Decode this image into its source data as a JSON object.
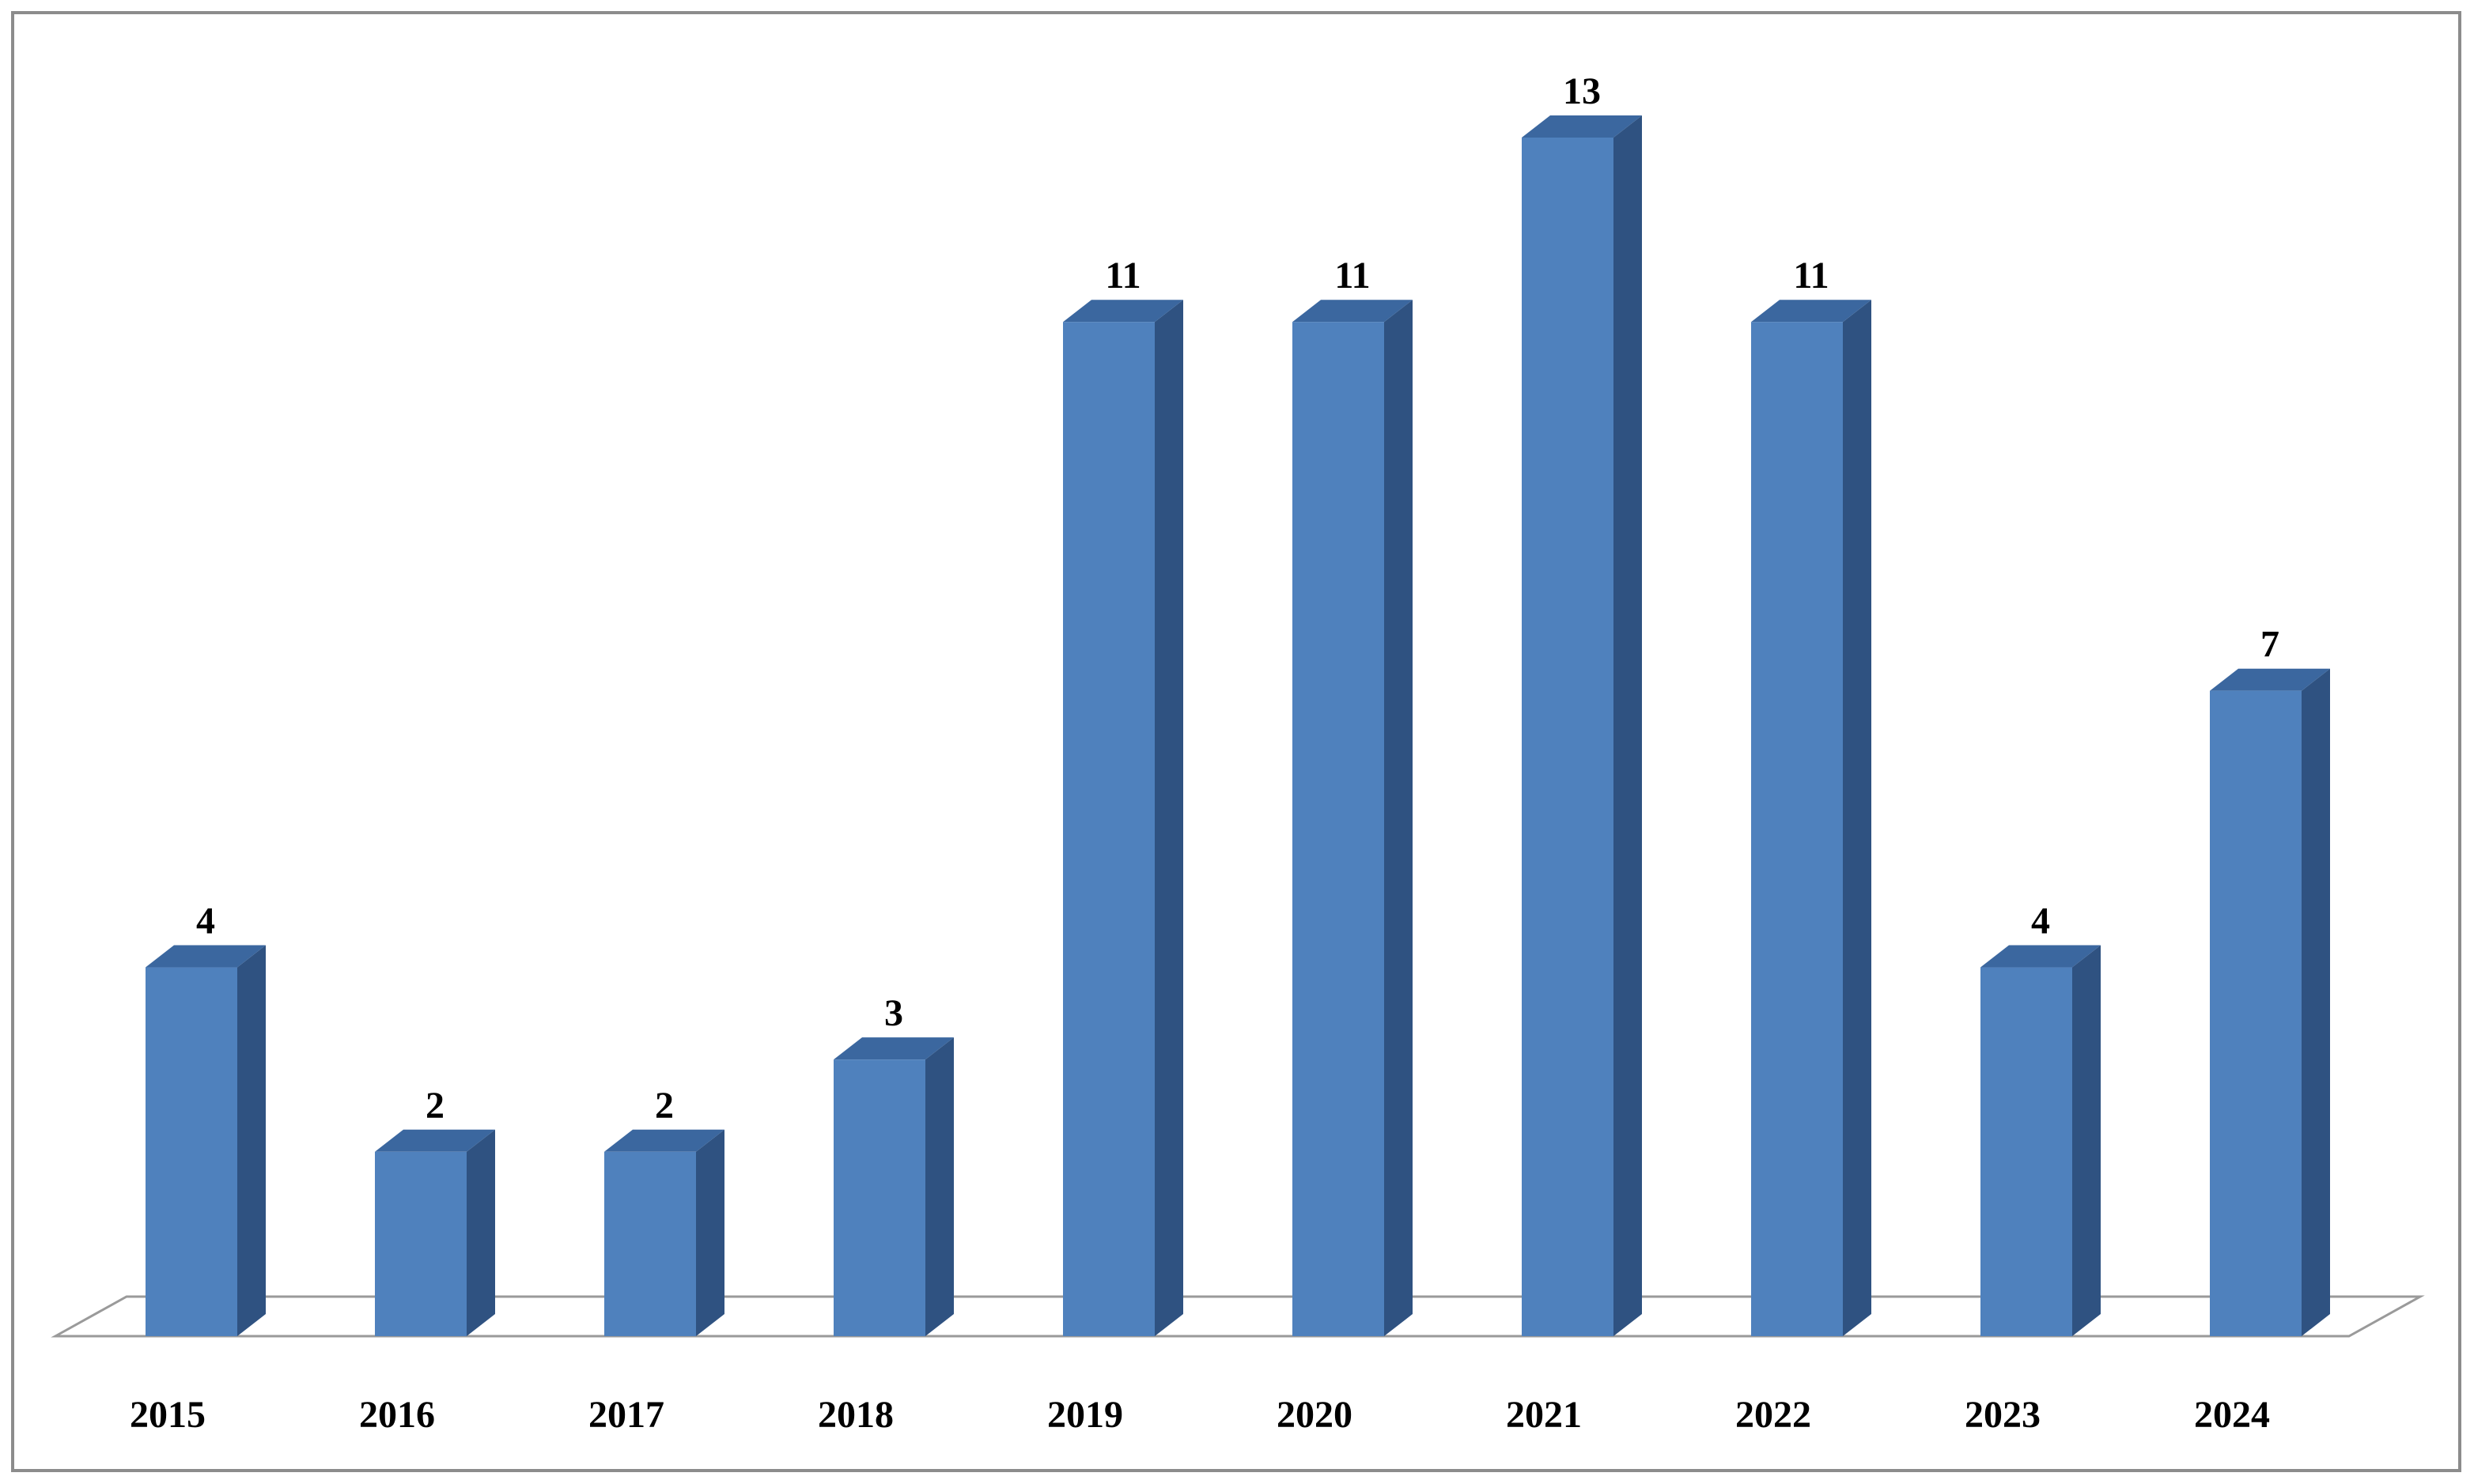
{
  "chart_data": {
    "type": "bar3d",
    "categories": [
      "2015",
      "2016",
      "2017",
      "2018",
      "2019",
      "2020",
      "2021",
      "2022",
      "2023",
      "2024"
    ],
    "values": [
      4,
      2,
      2,
      3,
      11,
      11,
      13,
      11,
      4,
      7
    ],
    "color": "#4f81bd"
  }
}
